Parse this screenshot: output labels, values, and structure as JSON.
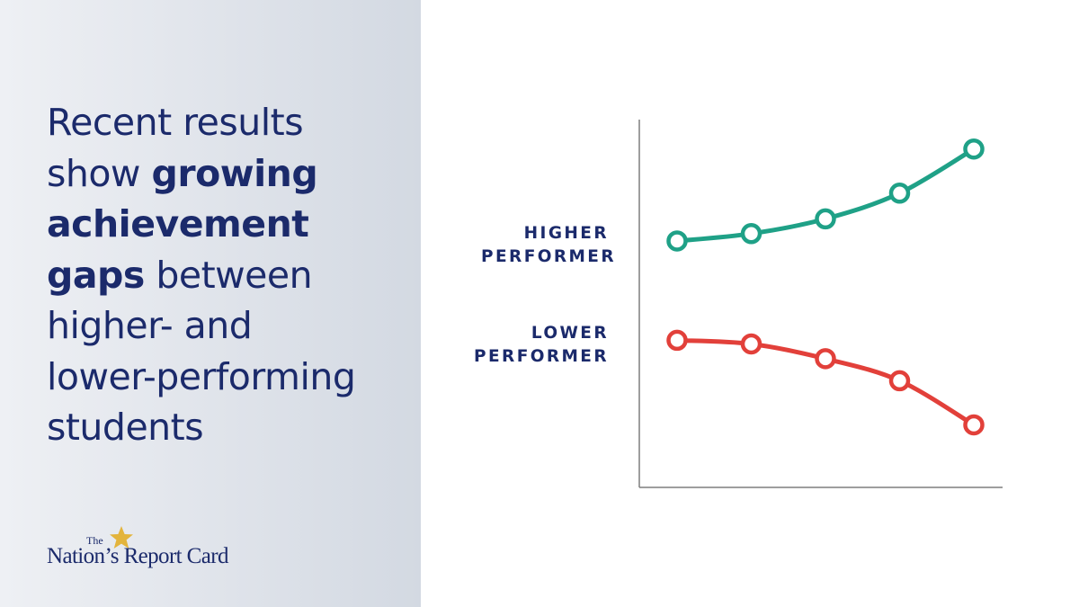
{
  "headline": {
    "line1": "Recent results",
    "line2_regular": "show ",
    "line2_bold": "growing",
    "line3_bold": "achievement",
    "line4_bold": "gaps",
    "line4_regular": " between",
    "line5": "higher- and",
    "line6": "lower-performing",
    "line7": "students"
  },
  "logo": {
    "small_text": "The",
    "name": "Nation’s Report Card",
    "icon": "star-icon"
  },
  "colors": {
    "navy": "#1b2a6b",
    "higher": "#1fa187",
    "lower": "#e2403a",
    "axis": "#7f7f7f",
    "star": "#e3b43c"
  },
  "chart_data": {
    "type": "line",
    "x": [
      1,
      2,
      3,
      4,
      5
    ],
    "ylim": [
      0,
      100
    ],
    "grid": false,
    "series": [
      {
        "key": "higher",
        "name_line1": "HIGHER",
        "name_line2": "PERFORMER",
        "color": "#1fa187",
        "values": [
          67,
          69,
          73,
          80,
          92
        ]
      },
      {
        "key": "lower",
        "name_line1": "LOWER",
        "name_line2": "PERFORMER",
        "color": "#e2403a",
        "values": [
          40,
          39,
          35,
          29,
          17
        ]
      }
    ]
  }
}
